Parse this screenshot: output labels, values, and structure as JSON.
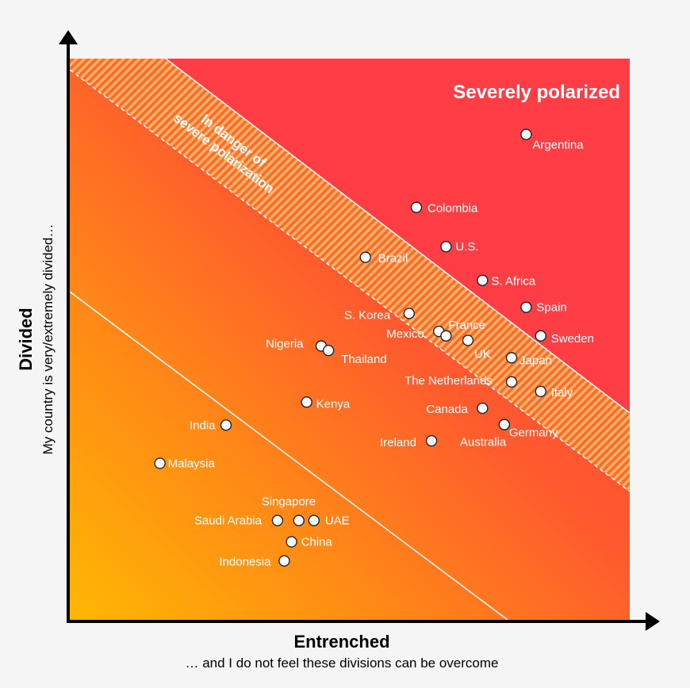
{
  "chart_data": {
    "type": "scatter",
    "title": "",
    "xlabel": "Entrenched",
    "xlabel_sub": "… and I do not feel these divisions can be overcome",
    "ylabel": "Divided",
    "ylabel_sub": "My country is very/extremely divided…",
    "zones": {
      "severe": "Severely polarized",
      "danger_line1": "In danger of",
      "danger_line2": "severe polarization"
    },
    "points": [
      {
        "name": "Argentina",
        "x": 81.5,
        "y": 86.5
      },
      {
        "name": "Colombia",
        "x": 61.9,
        "y": 73.5
      },
      {
        "name": "U.S.",
        "x": 67.2,
        "y": 66.5
      },
      {
        "name": "Brazil",
        "x": 52.8,
        "y": 64.6
      },
      {
        "name": "S. Africa",
        "x": 73.7,
        "y": 60.5
      },
      {
        "name": "Spain",
        "x": 81.5,
        "y": 55.7
      },
      {
        "name": "S. Korea",
        "x": 60.6,
        "y": 54.6
      },
      {
        "name": "Sweden",
        "x": 84.1,
        "y": 50.6
      },
      {
        "name": "Mexico",
        "x": 65.9,
        "y": 51.4
      },
      {
        "name": "France",
        "x": 67.2,
        "y": 50.6
      },
      {
        "name": "UK",
        "x": 71.1,
        "y": 49.8
      },
      {
        "name": "Nigeria",
        "x": 44.9,
        "y": 48.8
      },
      {
        "name": "Thailand",
        "x": 46.2,
        "y": 48.0
      },
      {
        "name": "Japan",
        "x": 78.9,
        "y": 46.7
      },
      {
        "name": "The Netherlands",
        "x": 78.9,
        "y": 42.4
      },
      {
        "name": "Italy",
        "x": 84.1,
        "y": 40.7
      },
      {
        "name": "Kenya",
        "x": 42.3,
        "y": 38.8
      },
      {
        "name": "Canada",
        "x": 73.7,
        "y": 37.7
      },
      {
        "name": "Germany",
        "x": 77.6,
        "y": 34.8
      },
      {
        "name": "India",
        "x": 27.9,
        "y": 34.7
      },
      {
        "name": "Ireland",
        "x": 64.6,
        "y": 31.9
      },
      {
        "name": "Australia",
        "x": 77.6,
        "y": 34.8
      },
      {
        "name": "Malaysia",
        "x": 16.1,
        "y": 27.9
      },
      {
        "name": "Singapore",
        "x": 40.9,
        "y": 17.7
      },
      {
        "name": "Saudi Arabia",
        "x": 37.1,
        "y": 17.7
      },
      {
        "name": "UAE",
        "x": 43.6,
        "y": 17.7
      },
      {
        "name": "China",
        "x": 39.6,
        "y": 13.9
      },
      {
        "name": "Indonesia",
        "x": 38.3,
        "y": 10.5
      }
    ]
  }
}
